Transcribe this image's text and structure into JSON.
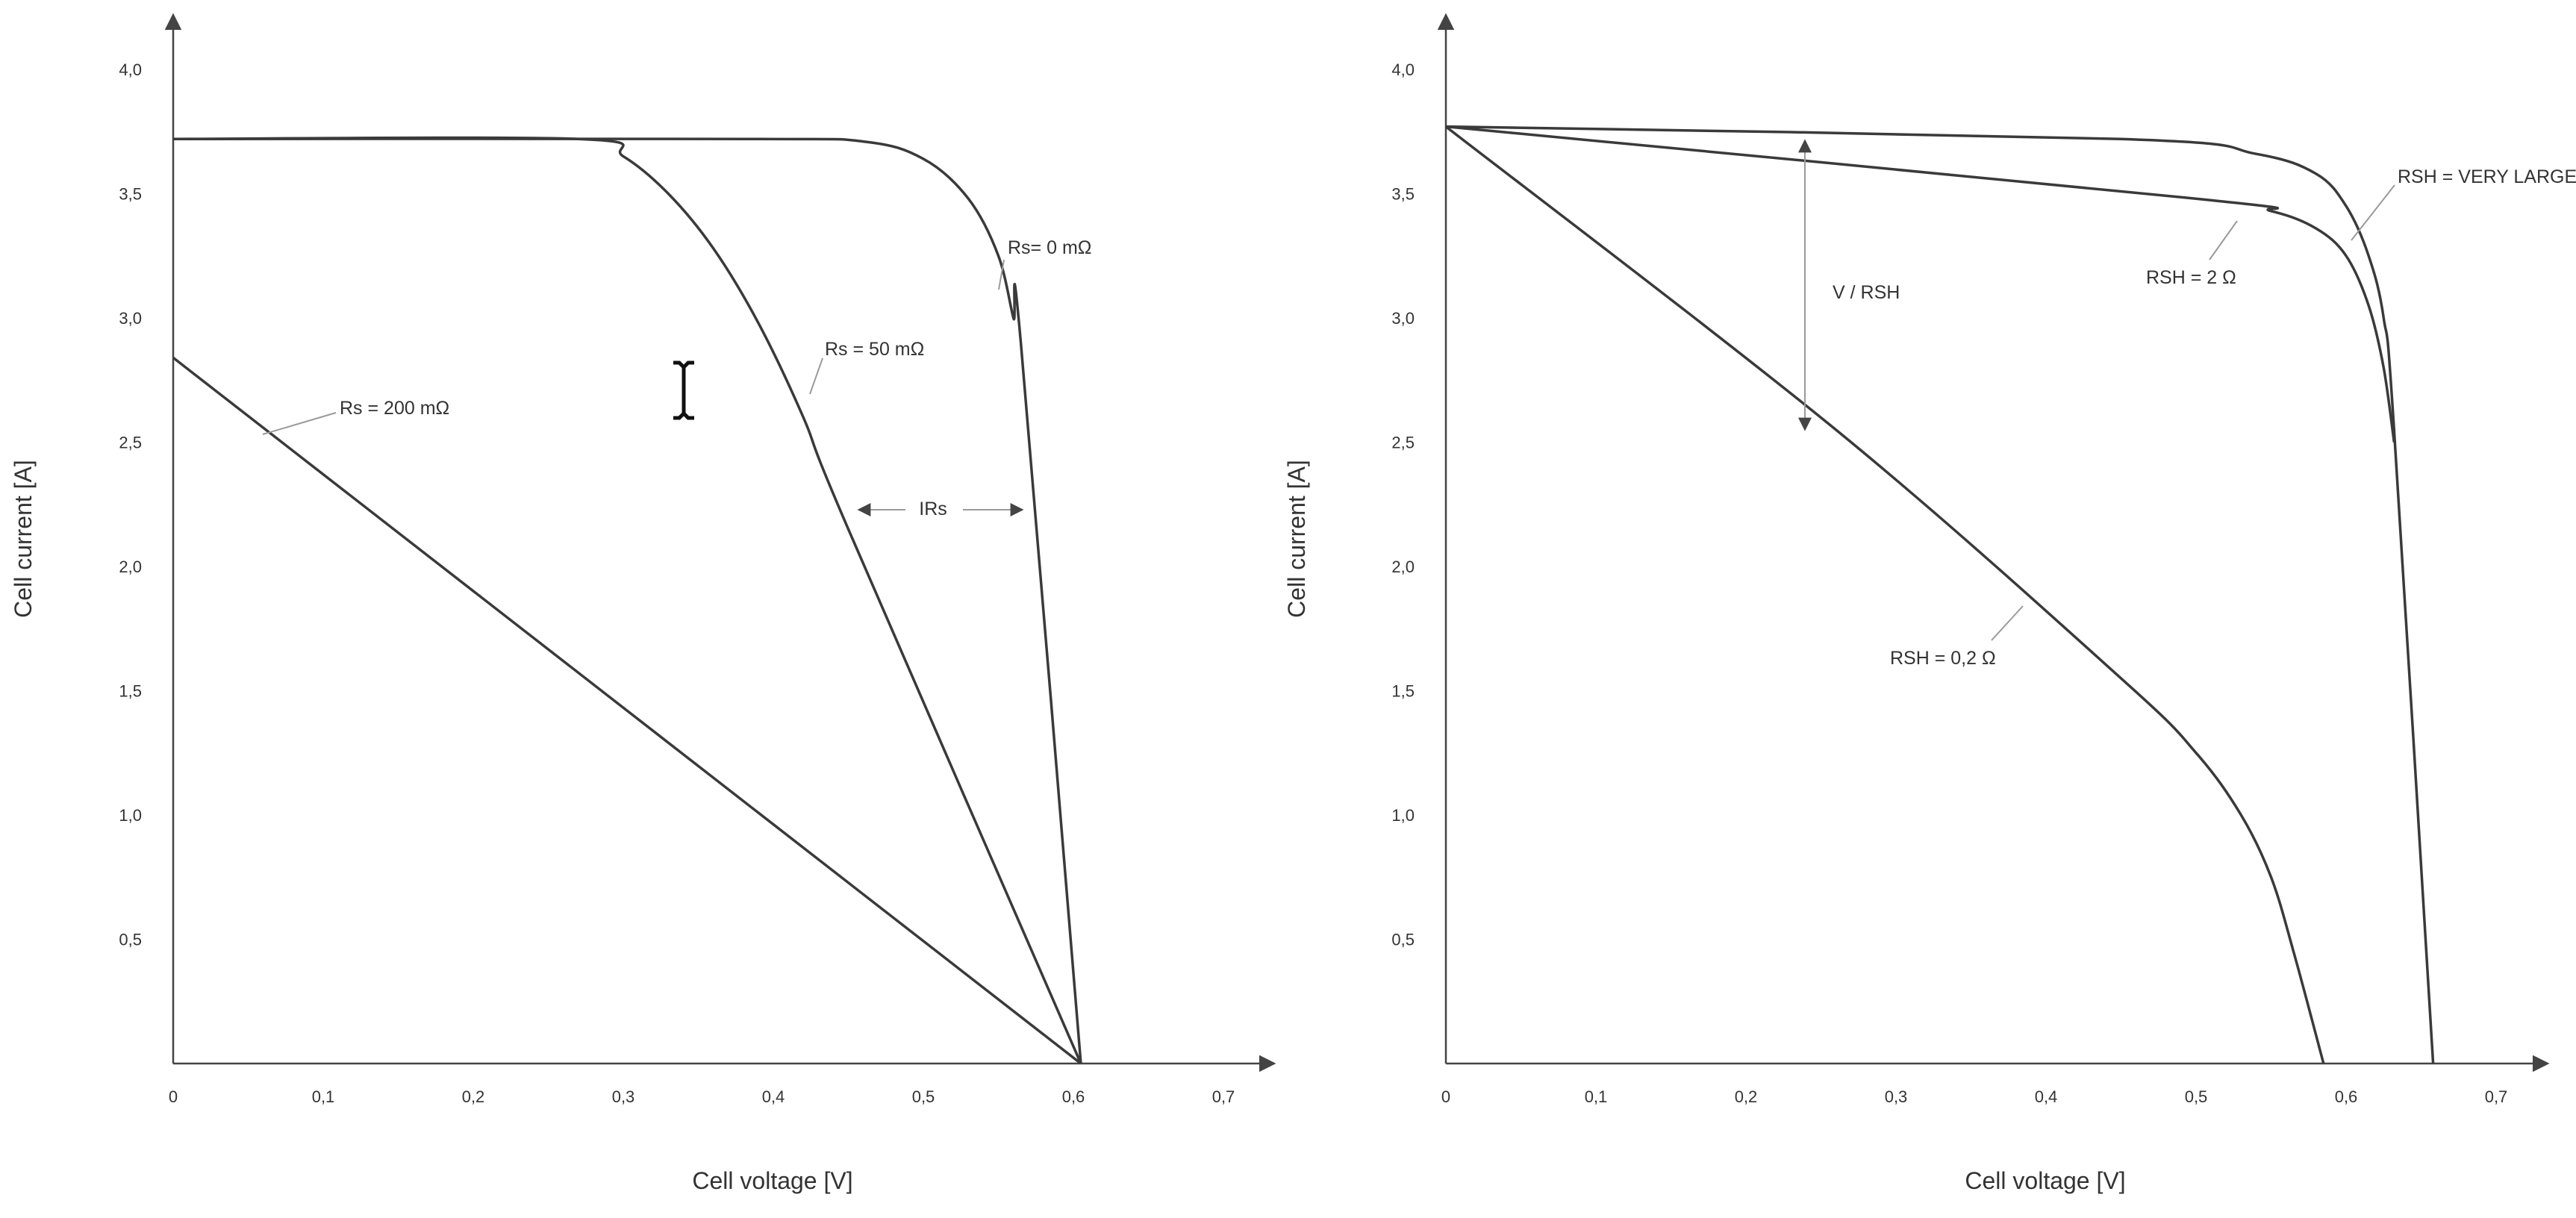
{
  "chart_data": [
    {
      "type": "line",
      "xlabel": "Cell voltage  [V]",
      "ylabel": "Cell current  [A]",
      "xlim": [
        0,
        0.74
      ],
      "ylim": [
        0,
        4.2
      ],
      "x_ticks": [
        "0",
        "0,1",
        "0,2",
        "0,3",
        "0,4",
        "0,5",
        "0,6",
        "0,7"
      ],
      "y_ticks": [
        "0,5",
        "1,0",
        "1,5",
        "2,0",
        "2,5",
        "3,0",
        "3,5",
        "4,0"
      ],
      "series": [
        {
          "name": "Rs= 0 mΩ",
          "x": [
            0,
            0.38,
            0.46,
            0.5,
            0.53,
            0.55,
            0.56,
            0.565,
            0.605
          ],
          "y": [
            3.72,
            3.72,
            3.71,
            3.64,
            3.48,
            3.25,
            3.0,
            2.9,
            0.0
          ]
        },
        {
          "name": "Rs = 50 mΩ",
          "x": [
            0,
            0.27,
            0.3,
            0.33,
            0.36,
            0.39,
            0.42,
            0.45,
            0.605
          ],
          "y": [
            3.72,
            3.72,
            3.65,
            3.5,
            3.28,
            2.98,
            2.6,
            2.15,
            0.0
          ]
        },
        {
          "name": "Rs = 200 mΩ",
          "x": [
            0,
            0.605
          ],
          "y": [
            2.84,
            0.0
          ]
        }
      ],
      "annotations": [
        "IRs"
      ]
    },
    {
      "type": "line",
      "xlabel": "Cell voltage  [V]",
      "ylabel": "Cell current  [A]",
      "xlim": [
        0,
        0.74
      ],
      "ylim": [
        0,
        4.2
      ],
      "x_ticks": [
        "0",
        "0,1",
        "0,2",
        "0,3",
        "0,4",
        "0,5",
        "0,6",
        "0,7"
      ],
      "y_ticks": [
        "0,5",
        "1,0",
        "1,5",
        "2,0",
        "2,5",
        "3,0",
        "3,5",
        "4,0"
      ],
      "series": [
        {
          "name": "RSH = VERY LARGE",
          "x": [
            0,
            0.45,
            0.54,
            0.58,
            0.6,
            0.615,
            0.625,
            0.632,
            0.658
          ],
          "y": [
            3.77,
            3.72,
            3.66,
            3.58,
            3.45,
            3.25,
            3.0,
            2.55,
            0.0
          ]
        },
        {
          "name": "RSH = 2 Ω",
          "x": [
            0,
            0.5,
            0.55,
            0.58,
            0.6,
            0.615,
            0.625,
            0.632
          ],
          "y": [
            3.77,
            3.48,
            3.43,
            3.36,
            3.25,
            3.05,
            2.8,
            2.5
          ]
        },
        {
          "name": "RSH = 0,2 Ω",
          "x": [
            0,
            0.26,
            0.45,
            0.5,
            0.53,
            0.55,
            0.565,
            0.585
          ],
          "y": [
            3.77,
            2.55,
            1.55,
            1.25,
            1.0,
            0.75,
            0.45,
            0.0
          ]
        }
      ],
      "annotations": [
        "V / RSH"
      ]
    }
  ]
}
